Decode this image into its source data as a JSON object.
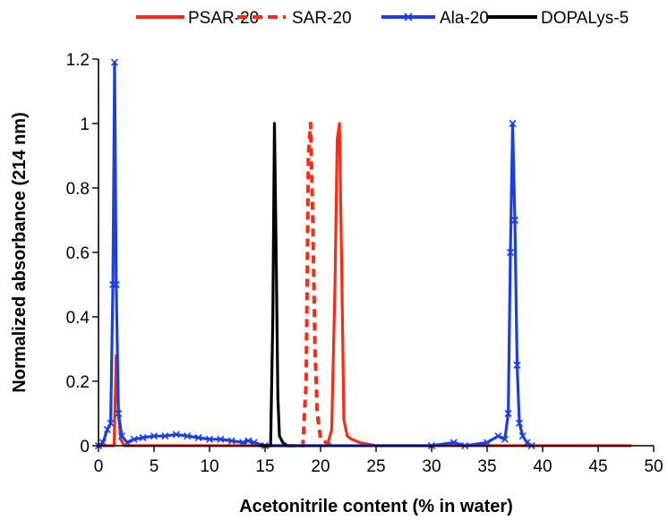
{
  "chart_data": {
    "type": "line",
    "title": "",
    "xlabel": "Acetonitrile content (% in water)",
    "ylabel": "Normalized absorbance (214 nm)",
    "xlim": [
      0,
      50
    ],
    "ylim": [
      0,
      1.2
    ],
    "xticks": [
      "0",
      "5",
      "10",
      "15",
      "20",
      "25",
      "30",
      "35",
      "40",
      "45",
      "50"
    ],
    "yticks": [
      "0",
      "0.2",
      "0.4",
      "0.6",
      "0.8",
      "1",
      "1.2"
    ],
    "grid": false,
    "legend_position": "top",
    "series": [
      {
        "name": "PSAR-20",
        "color": "#ff2a12",
        "style": "solid",
        "marker": "none",
        "x": [
          0,
          1.4,
          1.6,
          1.8,
          2.0,
          2.3,
          3,
          10,
          20.6,
          21.0,
          21.3,
          21.5,
          21.7,
          21.9,
          22.1,
          22.4,
          22.8,
          23.5,
          25,
          42,
          48
        ],
        "y": [
          0,
          0,
          0.28,
          0.1,
          0.02,
          0,
          0,
          0,
          0,
          0.05,
          0.5,
          0.95,
          1.0,
          0.55,
          0.08,
          0.03,
          0.02,
          0.01,
          0,
          0,
          0
        ]
      },
      {
        "name": "SAR-20",
        "color": "#ff2a12",
        "style": "dashed",
        "marker": "none",
        "x": [
          17,
          18.4,
          18.7,
          18.9,
          19.1,
          19.3,
          19.5,
          19.7,
          20.0,
          21
        ],
        "y": [
          0,
          0,
          0.2,
          0.9,
          1.0,
          0.7,
          0.3,
          0.1,
          0.02,
          0
        ]
      },
      {
        "name": "Ala-20",
        "color": "#1b3fe0",
        "style": "solid",
        "marker": "x",
        "x": [
          0,
          0.4,
          0.8,
          1.1,
          1.3,
          1.45,
          1.6,
          1.8,
          2.1,
          2.6,
          3.2,
          4,
          5,
          6,
          7,
          8,
          9,
          10,
          11,
          12,
          13,
          13.5,
          14,
          15,
          30,
          32,
          33,
          35,
          36,
          36.6,
          36.9,
          37.1,
          37.3,
          37.5,
          37.7,
          37.9,
          38.2,
          38.6,
          39
        ],
        "y": [
          0,
          0.01,
          0.05,
          0.07,
          0.5,
          1.19,
          0.5,
          0.1,
          0.03,
          0.01,
          0.02,
          0.025,
          0.03,
          0.03,
          0.035,
          0.03,
          0.025,
          0.02,
          0.02,
          0.015,
          0.01,
          0.015,
          0.01,
          0,
          0,
          0.01,
          0,
          0.01,
          0.03,
          0.02,
          0.1,
          0.6,
          1.0,
          0.7,
          0.25,
          0.07,
          0.03,
          0.01,
          0
        ]
      },
      {
        "name": "DOPALys-5",
        "color": "#000000",
        "style": "solid",
        "marker": "none",
        "x": [
          14.5,
          15.5,
          15.7,
          15.85,
          16.0,
          16.15,
          16.3,
          16.6,
          17
        ],
        "y": [
          0,
          0,
          0.4,
          1.0,
          0.6,
          0.15,
          0.03,
          0.01,
          0
        ]
      }
    ]
  }
}
